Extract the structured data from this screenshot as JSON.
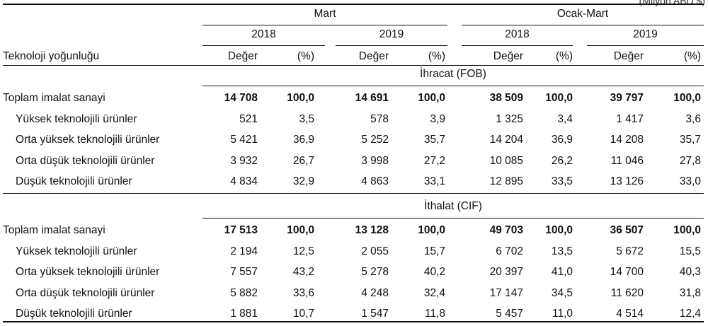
{
  "corner_note": "(Milyon ABD $)",
  "header": {
    "group_mart": "Mart",
    "group_ocak_mart": "Ocak-Mart",
    "years": [
      "2018",
      "2019",
      "2018",
      "2019"
    ],
    "row_label": "Teknoloji yoğunluğu",
    "col_value": "Değer",
    "col_pct": "(%)"
  },
  "sections": [
    {
      "title": "İhracat (FOB)",
      "total": {
        "label": "Toplam imalat sanayi",
        "values": [
          "14 708",
          "100,0",
          "14 691",
          "100,0",
          "38 509",
          "100,0",
          "39 797",
          "100,0"
        ]
      },
      "rows": [
        {
          "label": "Yüksek teknolojili ürünler",
          "values": [
            "521",
            "3,5",
            "578",
            "3,9",
            "1 325",
            "3,4",
            "1 417",
            "3,6"
          ]
        },
        {
          "label": "Orta yüksek teknolojili ürünler",
          "values": [
            "5 421",
            "36,9",
            "5 252",
            "35,7",
            "14 204",
            "36,9",
            "14 208",
            "35,7"
          ]
        },
        {
          "label": "Orta düşük teknolojili ürünler",
          "values": [
            "3 932",
            "26,7",
            "3 998",
            "27,2",
            "10 085",
            "26,2",
            "11 046",
            "27,8"
          ]
        },
        {
          "label": "Düşük teknolojili ürünler",
          "values": [
            "4 834",
            "32,9",
            "4 863",
            "33,1",
            "12 895",
            "33,5",
            "13 126",
            "33,0"
          ]
        }
      ]
    },
    {
      "title": "İthalat (CIF)",
      "total": {
        "label": "Toplam imalat sanayi",
        "values": [
          "17 513",
          "100,0",
          "13 128",
          "100,0",
          "49 703",
          "100,0",
          "36 507",
          "100,0"
        ]
      },
      "rows": [
        {
          "label": "Yüksek teknolojili ürünler",
          "values": [
            "2 194",
            "12,5",
            "2 055",
            "15,7",
            "6 702",
            "13,5",
            "5 672",
            "15,5"
          ]
        },
        {
          "label": "Orta yüksek teknolojili ürünler",
          "values": [
            "7 557",
            "43,2",
            "5 278",
            "40,2",
            "20 397",
            "41,0",
            "14 700",
            "40,3"
          ]
        },
        {
          "label": "Orta düşük teknolojili ürünler",
          "values": [
            "5 882",
            "33,6",
            "4 248",
            "32,4",
            "17 147",
            "34,5",
            "11 620",
            "31,8"
          ]
        },
        {
          "label": "Düşük teknolojili ürünler",
          "values": [
            "1 881",
            "10,7",
            "1 547",
            "11,8",
            "5 457",
            "11,0",
            "4 514",
            "12,4"
          ]
        }
      ]
    }
  ]
}
